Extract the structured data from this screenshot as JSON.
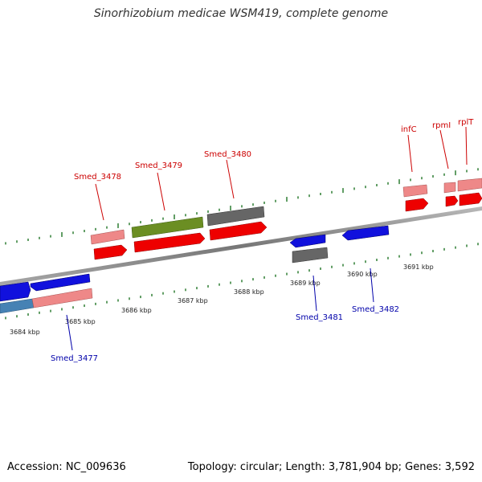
{
  "title": "Sinorhizobium medicae WSM419, complete genome",
  "footer": {
    "accession": "Accession: NC_009636",
    "topology": "Topology: circular; Length: 3,781,904 bp; Genes: 3,592"
  },
  "colors": {
    "backbone": "#888888",
    "tick": "#2e7d32",
    "label_forward": "#cc0000",
    "label_reverse": "#0000aa"
  },
  "kbp_labels": [
    "3684 kbp",
    "3685 kbp",
    "3686 kbp",
    "3687 kbp",
    "3688 kbp",
    "3689 kbp",
    "3690 kbp",
    "3691 kbp"
  ],
  "genes": [
    {
      "name": "Smed_3477",
      "strand": "reverse",
      "color": "#ee8888"
    },
    {
      "name": "Smed_3478",
      "strand": "forward",
      "color": "#ee8888"
    },
    {
      "name": "Smed_3479",
      "strand": "forward",
      "color": "#6b8e23"
    },
    {
      "name": "Smed_3480",
      "strand": "forward",
      "color": "#666666"
    },
    {
      "name": "Smed_3481",
      "strand": "reverse",
      "color": "#666666"
    },
    {
      "name": "Smed_3482",
      "strand": "reverse",
      "color": "#1111dd"
    },
    {
      "name": "infC",
      "strand": "forward",
      "color": "#ee8888"
    },
    {
      "name": "rpmI",
      "strand": "forward",
      "color": "#ee8888"
    },
    {
      "name": "rplT",
      "strand": "forward",
      "color": "#ee8888"
    }
  ]
}
